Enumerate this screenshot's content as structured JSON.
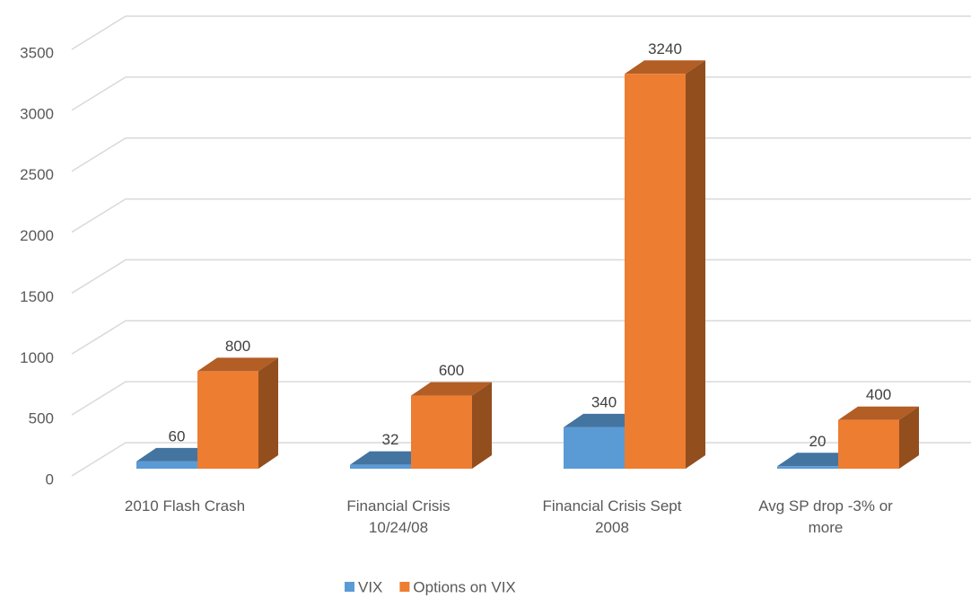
{
  "chart_data": {
    "type": "bar3d",
    "categories": [
      "2010 Flash Crash",
      "Financial Crisis 10/24/08",
      "Financial Crisis Sept 2008",
      "Avg SP drop -3% or more"
    ],
    "series": [
      {
        "name": "VIX",
        "color": "#5b9bd5",
        "values": [
          60,
          32,
          340,
          20
        ]
      },
      {
        "name": "Options on VIX",
        "color": "#ed7d31",
        "values": [
          800,
          600,
          3240,
          400
        ]
      }
    ],
    "ylim": [
      0,
      3500
    ],
    "yticks": [
      0,
      500,
      1000,
      1500,
      2000,
      2500,
      3000,
      3500
    ],
    "grid": true,
    "legend": "bottom"
  }
}
